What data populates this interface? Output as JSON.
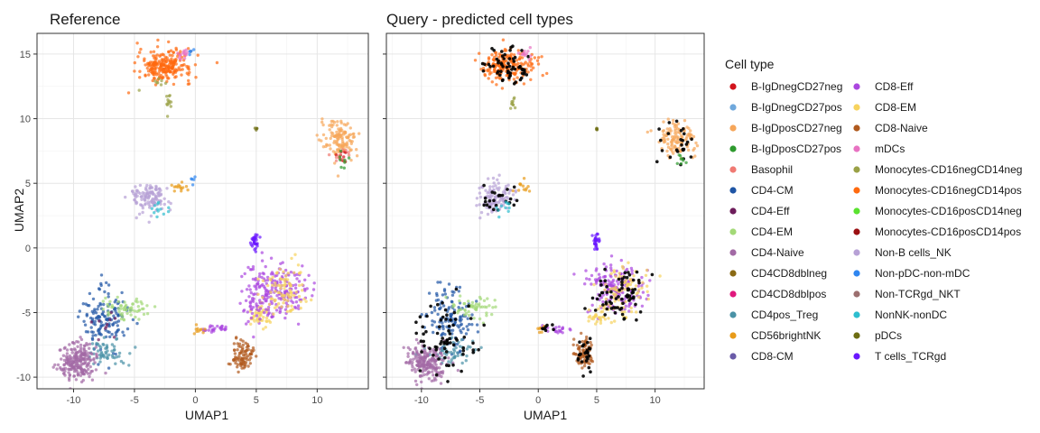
{
  "chart_data": [
    {
      "type": "scatter",
      "title": "Reference",
      "xlabel": "UMAP1",
      "ylabel": "UMAP2",
      "xlim": [
        -13,
        14.2
      ],
      "ylim": [
        -10.9,
        16.6
      ],
      "xticks": [
        -10,
        -5,
        0,
        5,
        10
      ],
      "yticks": [
        -10,
        -5,
        0,
        5,
        10,
        15
      ],
      "xtick_labels": [
        "-10",
        "-5",
        "0",
        "5",
        "10"
      ],
      "ytick_labels": [
        "-10",
        "-5",
        "0",
        "5",
        "10",
        "15"
      ],
      "grid": true,
      "clusters": [
        {
          "type": "Monocytes-CD16negCD14pos",
          "cx": -2.5,
          "cy": 14.1,
          "sx": 1.1,
          "sy": 0.6,
          "n": 230
        },
        {
          "type": "mDCs",
          "cx": -1.0,
          "cy": 15.0,
          "sx": 0.25,
          "sy": 0.2,
          "n": 14
        },
        {
          "type": "Non-pDC-non-mDC",
          "cx": -0.4,
          "cy": 15.2,
          "sx": 0.15,
          "sy": 0.12,
          "n": 5
        },
        {
          "type": "Monocytes-CD16negCD14neg",
          "cx": -2.2,
          "cy": 11.2,
          "sx": 0.12,
          "sy": 0.45,
          "n": 12
        },
        {
          "type": "Monocytes-CD16negCD14neg",
          "cx": -2.9,
          "cy": 12.8,
          "sx": 0.4,
          "sy": 0.25,
          "n": 8
        },
        {
          "type": "pDCs",
          "cx": 5.0,
          "cy": 9.2,
          "sx": 0.05,
          "sy": 0.05,
          "n": 4
        },
        {
          "type": "B-IgDposCD27neg",
          "cx": 11.9,
          "cy": 8.4,
          "sx": 0.8,
          "sy": 0.7,
          "n": 130
        },
        {
          "type": "B-IgDnegCD27neg",
          "cx": 12.1,
          "cy": 7.0,
          "sx": 0.3,
          "sy": 0.4,
          "n": 10
        },
        {
          "type": "Basophil",
          "cx": 11.9,
          "cy": 7.2,
          "sx": 0.4,
          "sy": 0.5,
          "n": 10
        },
        {
          "type": "B-IgDposCD27pos",
          "cx": 12.2,
          "cy": 6.8,
          "sx": 0.2,
          "sy": 0.3,
          "n": 8
        },
        {
          "type": "Non-B cells_NK",
          "cx": -3.8,
          "cy": 3.9,
          "sx": 0.8,
          "sy": 0.6,
          "n": 120
        },
        {
          "type": "NonNK-nonDC",
          "cx": -3.0,
          "cy": 3.1,
          "sx": 0.35,
          "sy": 0.35,
          "n": 12
        },
        {
          "type": "CD56brightNK",
          "cx": -1.2,
          "cy": 4.7,
          "sx": 0.35,
          "sy": 0.25,
          "n": 14
        },
        {
          "type": "Non-pDC-non-mDC",
          "cx": -0.2,
          "cy": 5.1,
          "sx": 0.2,
          "sy": 0.2,
          "n": 5
        },
        {
          "type": "T cells_TCRgd",
          "cx": 4.9,
          "cy": 0.5,
          "sx": 0.15,
          "sy": 0.35,
          "n": 30
        },
        {
          "type": "CD8-Eff",
          "cx": 6.6,
          "cy": -3.2,
          "sx": 1.2,
          "sy": 1.0,
          "n": 200
        },
        {
          "type": "CD8-EM",
          "cx": 7.4,
          "cy": -3.4,
          "sx": 1.0,
          "sy": 1.0,
          "n": 90
        },
        {
          "type": "CD8-EM",
          "cx": 5.2,
          "cy": -5.2,
          "sx": 0.5,
          "sy": 0.5,
          "n": 40
        },
        {
          "type": "CD8-Eff",
          "cx": 5.0,
          "cy": -4.4,
          "sx": 0.6,
          "sy": 0.9,
          "n": 40
        },
        {
          "type": "CD8-Eff",
          "cx": 1.5,
          "cy": -6.3,
          "sx": 0.7,
          "sy": 0.15,
          "n": 26
        },
        {
          "type": "CD56brightNK",
          "cx": 0.4,
          "cy": -6.3,
          "sx": 0.3,
          "sy": 0.15,
          "n": 10
        },
        {
          "type": "CD8-Naive",
          "cx": 3.9,
          "cy": -8.3,
          "sx": 0.4,
          "sy": 0.6,
          "n": 90
        },
        {
          "type": "CD4-CM",
          "cx": -7.4,
          "cy": -5.5,
          "sx": 0.9,
          "sy": 1.2,
          "n": 140
        },
        {
          "type": "CD4-EM",
          "cx": -5.7,
          "cy": -4.6,
          "sx": 0.9,
          "sy": 0.45,
          "n": 60
        },
        {
          "type": "CD4pos_Treg",
          "cx": -7.3,
          "cy": -8.0,
          "sx": 1.0,
          "sy": 0.5,
          "n": 55
        },
        {
          "type": "CD4-Naive",
          "cx": -9.6,
          "cy": -8.8,
          "sx": 0.8,
          "sy": 0.7,
          "n": 220
        },
        {
          "type": "CD4-Eff",
          "cx": -7.0,
          "cy": -6.0,
          "sx": 0.7,
          "sy": 0.7,
          "n": 10
        }
      ]
    },
    {
      "type": "scatter",
      "title": "Query - predicted cell types",
      "xlabel": "UMAP1",
      "ylabel": "",
      "xlim": [
        -13,
        14.2
      ],
      "ylim": [
        -10.9,
        16.6
      ],
      "xticks": [
        -10,
        -5,
        0,
        5,
        10
      ],
      "yticks": [
        -10,
        -5,
        0,
        5,
        10,
        15
      ],
      "xtick_labels": [
        "-10",
        "-5",
        "0",
        "5",
        "10"
      ],
      "ytick_labels": [],
      "grid": true,
      "clusters": [
        {
          "type": "Monocytes-CD16negCD14pos",
          "cx": -2.5,
          "cy": 14.1,
          "sx": 1.1,
          "sy": 0.6,
          "n": 200
        },
        {
          "type": "unassigned",
          "cx": -2.6,
          "cy": 14.0,
          "sx": 1.0,
          "sy": 0.6,
          "n": 60
        },
        {
          "type": "mDCs",
          "cx": -1.0,
          "cy": 15.0,
          "sx": 0.25,
          "sy": 0.2,
          "n": 12
        },
        {
          "type": "Monocytes-CD16negCD14neg",
          "cx": -2.2,
          "cy": 11.2,
          "sx": 0.12,
          "sy": 0.45,
          "n": 10
        },
        {
          "type": "pDCs",
          "cx": 5.0,
          "cy": 9.2,
          "sx": 0.05,
          "sy": 0.05,
          "n": 4
        },
        {
          "type": "B-IgDposCD27neg",
          "cx": 11.9,
          "cy": 8.4,
          "sx": 0.8,
          "sy": 0.7,
          "n": 120
        },
        {
          "type": "unassigned",
          "cx": 12.0,
          "cy": 8.2,
          "sx": 0.8,
          "sy": 0.8,
          "n": 25
        },
        {
          "type": "B-IgDposCD27pos",
          "cx": 12.2,
          "cy": 6.8,
          "sx": 0.2,
          "sy": 0.3,
          "n": 8
        },
        {
          "type": "Non-B cells_NK",
          "cx": -3.8,
          "cy": 3.9,
          "sx": 0.8,
          "sy": 0.6,
          "n": 110
        },
        {
          "type": "unassigned",
          "cx": -3.8,
          "cy": 3.8,
          "sx": 0.8,
          "sy": 0.6,
          "n": 25
        },
        {
          "type": "NonNK-nonDC",
          "cx": -3.0,
          "cy": 3.1,
          "sx": 0.35,
          "sy": 0.35,
          "n": 10
        },
        {
          "type": "CD56brightNK",
          "cx": -1.2,
          "cy": 4.7,
          "sx": 0.35,
          "sy": 0.25,
          "n": 12
        },
        {
          "type": "T cells_TCRgd",
          "cx": 4.9,
          "cy": 0.5,
          "sx": 0.15,
          "sy": 0.35,
          "n": 30
        },
        {
          "type": "CD8-Eff",
          "cx": 6.6,
          "cy": -3.2,
          "sx": 1.2,
          "sy": 1.0,
          "n": 180
        },
        {
          "type": "CD8-EM",
          "cx": 7.4,
          "cy": -3.4,
          "sx": 1.0,
          "sy": 1.0,
          "n": 80
        },
        {
          "type": "CD8-EM",
          "cx": 5.2,
          "cy": -5.2,
          "sx": 0.5,
          "sy": 0.5,
          "n": 35
        },
        {
          "type": "unassigned",
          "cx": 6.5,
          "cy": -3.6,
          "sx": 1.2,
          "sy": 1.1,
          "n": 70
        },
        {
          "type": "CD8-Eff",
          "cx": 1.5,
          "cy": -6.3,
          "sx": 0.7,
          "sy": 0.15,
          "n": 22
        },
        {
          "type": "CD56brightNK",
          "cx": 0.4,
          "cy": -6.3,
          "sx": 0.3,
          "sy": 0.15,
          "n": 8
        },
        {
          "type": "unassigned",
          "cx": 0.6,
          "cy": -6.2,
          "sx": 0.3,
          "sy": 0.15,
          "n": 8
        },
        {
          "type": "CD8-Naive",
          "cx": 3.9,
          "cy": -8.3,
          "sx": 0.4,
          "sy": 0.6,
          "n": 80
        },
        {
          "type": "unassigned",
          "cx": 3.9,
          "cy": -8.1,
          "sx": 0.4,
          "sy": 0.6,
          "n": 25
        },
        {
          "type": "CD4-CM",
          "cx": -7.4,
          "cy": -5.5,
          "sx": 0.9,
          "sy": 1.2,
          "n": 130
        },
        {
          "type": "CD4-EM",
          "cx": -5.7,
          "cy": -4.6,
          "sx": 0.9,
          "sy": 0.45,
          "n": 55
        },
        {
          "type": "CD4pos_Treg",
          "cx": -7.3,
          "cy": -8.0,
          "sx": 1.0,
          "sy": 0.5,
          "n": 50
        },
        {
          "type": "CD4-Naive",
          "cx": -9.6,
          "cy": -8.8,
          "sx": 0.8,
          "sy": 0.7,
          "n": 200
        },
        {
          "type": "unassigned",
          "cx": -8.0,
          "cy": -6.8,
          "sx": 1.5,
          "sy": 1.6,
          "n": 70
        }
      ]
    }
  ],
  "legend": {
    "title": "Cell type",
    "placement": "right",
    "columns": [
      [
        {
          "label": "B-IgDnegCD27neg",
          "color": "#d2141c"
        },
        {
          "label": "B-IgDnegCD27pos",
          "color": "#6fa8dc"
        },
        {
          "label": "B-IgDposCD27neg",
          "color": "#f6a65a"
        },
        {
          "label": "B-IgDposCD27pos",
          "color": "#2e9a2e"
        },
        {
          "label": "Basophil",
          "color": "#f07a73"
        },
        {
          "label": "CD4-CM",
          "color": "#1f55a5"
        },
        {
          "label": "CD4-Eff",
          "color": "#6d1d5b"
        },
        {
          "label": "CD4-EM",
          "color": "#a3d977"
        },
        {
          "label": "CD4-Naive",
          "color": "#a26aa5"
        },
        {
          "label": "CD4CD8dblneg",
          "color": "#8a6a14"
        },
        {
          "label": "CD4CD8dblpos",
          "color": "#e0197d"
        },
        {
          "label": "CD4pos_Treg",
          "color": "#4a92a6"
        },
        {
          "label": "CD56brightNK",
          "color": "#e89b19"
        },
        {
          "label": "CD8-CM",
          "color": "#6a5ba8"
        }
      ],
      [
        {
          "label": "CD8-Eff",
          "color": "#ab47df"
        },
        {
          "label": "CD8-EM",
          "color": "#f7d35e"
        },
        {
          "label": "CD8-Naive",
          "color": "#b05a1e"
        },
        {
          "label": "mDCs",
          "color": "#e872c2"
        },
        {
          "label": "Monocytes-CD16negCD14neg",
          "color": "#9aa146"
        },
        {
          "label": "Monocytes-CD16negCD14pos",
          "color": "#ff6a0f"
        },
        {
          "label": "Monocytes-CD16posCD14neg",
          "color": "#5ae22f"
        },
        {
          "label": "Monocytes-CD16posCD14pos",
          "color": "#9b0f12"
        },
        {
          "label": "Non-B cells_NK",
          "color": "#b7a1d6"
        },
        {
          "label": "Non-pDC-non-mDC",
          "color": "#2f86f0"
        },
        {
          "label": "Non-TCRgd_NKT",
          "color": "#9c6f6f"
        },
        {
          "label": "NonNK-nonDC",
          "color": "#2dbecf"
        },
        {
          "label": "pDCs",
          "color": "#6d6d12"
        },
        {
          "label": "T cells_TCRgd",
          "color": "#6a17ff"
        }
      ]
    ]
  },
  "colors": {
    "unassigned": "#000000",
    "grid": "#e6e6e6",
    "panel_border": "#333333",
    "axis_text": "#4d4d4d"
  }
}
